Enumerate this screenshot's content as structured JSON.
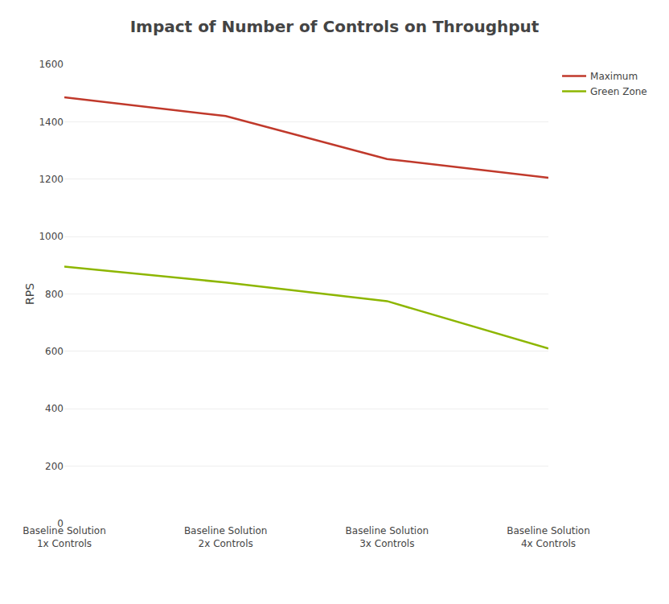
{
  "chart_data": {
    "type": "line",
    "title": "Impact of Number of Controls on Throughput",
    "ylabel": "RPS",
    "categories": [
      "Baseline Solution\n1x Controls",
      "Baseline Solution\n2x Controls",
      "Baseline Solution\n3x Controls",
      "Baseline Solution\n4x Controls"
    ],
    "series": [
      {
        "name": "Maximum",
        "color": "#c0392b",
        "values": [
          1485,
          1420,
          1270,
          1205
        ]
      },
      {
        "name": "Green Zone",
        "color": "#8db600",
        "values": [
          895,
          840,
          775,
          610
        ]
      }
    ],
    "ylim": [
      0,
      1600
    ],
    "yticks": [
      0,
      200,
      400,
      600,
      800,
      1000,
      1200,
      1400,
      1600
    ],
    "grid": true,
    "legend": "right"
  }
}
